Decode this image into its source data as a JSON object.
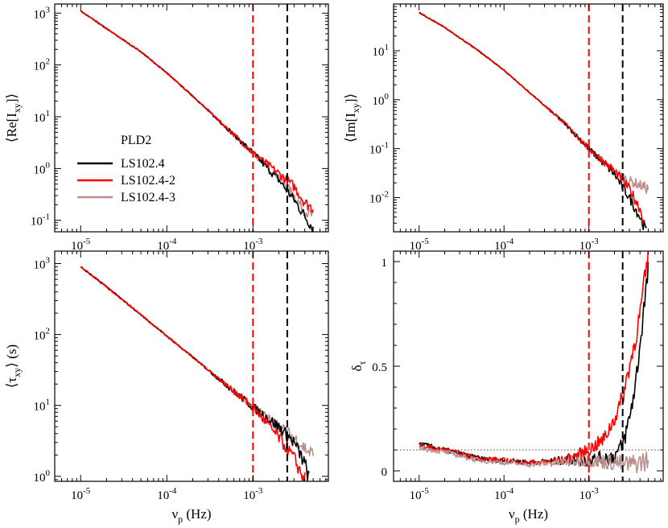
{
  "colors": {
    "LS102.4": "#000000",
    "LS102.4-2": "#ff0000",
    "LS102.4-3": "#bc8f8f",
    "refline_red": "#ff0000",
    "refline_black": "#000000"
  },
  "legend": {
    "title": "PLD2",
    "placement": "center-left of top-left panel",
    "entries": [
      "LS102.4",
      "LS102.4-2",
      "LS102.4-3"
    ]
  },
  "reference_lines": {
    "red_x": 0.001,
    "black_x": 0.0025,
    "dotted_y_delta": 0.1
  },
  "chart_data": [
    {
      "id": "re",
      "type": "line",
      "ylabel": "⟨Re[I_xy]⟩",
      "xlabel": "",
      "xscale": "log",
      "yscale": "log",
      "xlim": [
        5e-06,
        0.0075
      ],
      "ylim": [
        0.06,
        1500
      ],
      "xticks": [
        {
          "v": 1e-05,
          "mant": "10",
          "exp": "-5"
        },
        {
          "v": 0.0001,
          "mant": "10",
          "exp": "-4"
        },
        {
          "v": 0.001,
          "mant": "10",
          "exp": "-3"
        }
      ],
      "yticks": [
        {
          "v": 0.1,
          "mant": "10",
          "exp": "-1"
        },
        {
          "v": 1,
          "mant": "10",
          "exp": "0"
        },
        {
          "v": 10,
          "mant": "10",
          "exp": "1"
        },
        {
          "v": 100,
          "mant": "10",
          "exp": "2"
        },
        {
          "v": 1000,
          "mant": "10",
          "exp": "3"
        }
      ],
      "series": [
        {
          "name": "LS102.4",
          "points": [
            [
              1e-05,
              1100
            ],
            [
              2e-05,
              500
            ],
            [
              5e-05,
              180
            ],
            [
              0.0001,
              70
            ],
            [
              0.0002,
              25
            ],
            [
              0.0005,
              6
            ],
            [
              0.001,
              2
            ],
            [
              0.002,
              0.6
            ],
            [
              0.003,
              0.25
            ],
            [
              0.004,
              0.12
            ],
            [
              0.005,
              0.07
            ]
          ]
        },
        {
          "name": "LS102.4-2",
          "points": [
            [
              1e-05,
              1100
            ],
            [
              2e-05,
              500
            ],
            [
              5e-05,
              180
            ],
            [
              0.0001,
              70
            ],
            [
              0.0002,
              25
            ],
            [
              0.0005,
              6
            ],
            [
              0.001,
              2
            ],
            [
              0.002,
              0.8
            ],
            [
              0.003,
              0.45
            ],
            [
              0.004,
              0.22
            ],
            [
              0.005,
              0.17
            ]
          ]
        },
        {
          "name": "LS102.4-3",
          "points": [
            [
              1e-05,
              1100
            ],
            [
              2e-05,
              500
            ],
            [
              5e-05,
              180
            ],
            [
              0.0001,
              70
            ],
            [
              0.0002,
              25
            ],
            [
              0.0005,
              6
            ],
            [
              0.001,
              2
            ],
            [
              0.002,
              0.7
            ],
            [
              0.003,
              0.3
            ],
            [
              0.004,
              0.15
            ],
            [
              0.005,
              0.12
            ]
          ]
        }
      ]
    },
    {
      "id": "im",
      "type": "line",
      "ylabel": "⟨Im[I_xy]⟩",
      "xlabel": "",
      "xscale": "log",
      "yscale": "log",
      "xlim": [
        5e-06,
        0.0075
      ],
      "ylim": [
        0.002,
        90
      ],
      "xticks": [
        {
          "v": 1e-05,
          "mant": "10",
          "exp": "-5"
        },
        {
          "v": 0.0001,
          "mant": "10",
          "exp": "-4"
        },
        {
          "v": 0.001,
          "mant": "10",
          "exp": "-3"
        }
      ],
      "yticks": [
        {
          "v": 0.01,
          "mant": "10",
          "exp": "-2"
        },
        {
          "v": 0.1,
          "mant": "10",
          "exp": "-1"
        },
        {
          "v": 1,
          "mant": "10",
          "exp": "0"
        },
        {
          "v": 10,
          "mant": "10",
          "exp": "1"
        }
      ],
      "series": [
        {
          "name": "LS102.4",
          "points": [
            [
              1e-05,
              60
            ],
            [
              2e-05,
              30
            ],
            [
              5e-05,
              10
            ],
            [
              0.0001,
              4
            ],
            [
              0.0002,
              1.4
            ],
            [
              0.0005,
              0.35
            ],
            [
              0.001,
              0.1
            ],
            [
              0.002,
              0.03
            ],
            [
              0.003,
              0.01
            ],
            [
              0.004,
              0.004
            ],
            [
              0.0048,
              0.002
            ]
          ]
        },
        {
          "name": "LS102.4-2",
          "points": [
            [
              1e-05,
              60
            ],
            [
              2e-05,
              30
            ],
            [
              5e-05,
              10
            ],
            [
              0.0001,
              4
            ],
            [
              0.0002,
              1.4
            ],
            [
              0.0005,
              0.35
            ],
            [
              0.001,
              0.1
            ],
            [
              0.002,
              0.035
            ],
            [
              0.003,
              0.015
            ],
            [
              0.004,
              0.006
            ],
            [
              0.0045,
              0.003
            ]
          ]
        },
        {
          "name": "LS102.4-3",
          "points": [
            [
              1e-05,
              60
            ],
            [
              2e-05,
              30
            ],
            [
              5e-05,
              10
            ],
            [
              0.0001,
              4
            ],
            [
              0.0002,
              1.4
            ],
            [
              0.0005,
              0.35
            ],
            [
              0.001,
              0.1
            ],
            [
              0.002,
              0.035
            ],
            [
              0.003,
              0.022
            ],
            [
              0.004,
              0.018
            ],
            [
              0.005,
              0.015
            ]
          ]
        }
      ]
    },
    {
      "id": "tau",
      "type": "line",
      "ylabel": "⟨τ_xy⟩ (s)",
      "xlabel": "ν_p (Hz)",
      "xscale": "log",
      "yscale": "log",
      "xlim": [
        5e-06,
        0.0075
      ],
      "ylim": [
        0.85,
        1500
      ],
      "xticks": [
        {
          "v": 1e-05,
          "mant": "10",
          "exp": "-5"
        },
        {
          "v": 0.0001,
          "mant": "10",
          "exp": "-4"
        },
        {
          "v": 0.001,
          "mant": "10",
          "exp": "-3"
        }
      ],
      "yticks": [
        {
          "v": 1,
          "mant": "10",
          "exp": "0"
        },
        {
          "v": 10,
          "mant": "10",
          "exp": "1"
        },
        {
          "v": 100,
          "mant": "10",
          "exp": "2"
        },
        {
          "v": 1000,
          "mant": "10",
          "exp": "3"
        }
      ],
      "series": [
        {
          "name": "LS102.4",
          "points": [
            [
              1e-05,
              900
            ],
            [
              2e-05,
              470
            ],
            [
              5e-05,
              190
            ],
            [
              0.0001,
              95
            ],
            [
              0.0002,
              48
            ],
            [
              0.0005,
              19
            ],
            [
              0.001,
              9.5
            ],
            [
              0.002,
              5
            ],
            [
              0.003,
              3
            ],
            [
              0.004,
              1.5
            ],
            [
              0.0045,
              0.9
            ]
          ]
        },
        {
          "name": "LS102.4-2",
          "points": [
            [
              1e-05,
              900
            ],
            [
              2e-05,
              470
            ],
            [
              5e-05,
              190
            ],
            [
              0.0001,
              95
            ],
            [
              0.0002,
              48
            ],
            [
              0.0005,
              19
            ],
            [
              0.001,
              9.5
            ],
            [
              0.002,
              3.5
            ],
            [
              0.003,
              1.8
            ],
            [
              0.0035,
              1.2
            ],
            [
              0.004,
              0.9
            ]
          ]
        },
        {
          "name": "LS102.4-3",
          "points": [
            [
              1e-05,
              900
            ],
            [
              2e-05,
              470
            ],
            [
              5e-05,
              190
            ],
            [
              0.0001,
              95
            ],
            [
              0.0002,
              48
            ],
            [
              0.0005,
              19
            ],
            [
              0.001,
              9.5
            ],
            [
              0.002,
              5
            ],
            [
              0.003,
              3.5
            ],
            [
              0.004,
              2.5
            ],
            [
              0.005,
              2
            ]
          ]
        }
      ]
    },
    {
      "id": "delta",
      "type": "line",
      "ylabel": "δ_τ",
      "xlabel": "ν_p (Hz)",
      "xscale": "log",
      "yscale": "linear",
      "xlim": [
        5e-06,
        0.0075
      ],
      "ylim": [
        -0.05,
        1.05
      ],
      "xticks": [
        {
          "v": 1e-05,
          "mant": "10",
          "exp": "-5"
        },
        {
          "v": 0.0001,
          "mant": "10",
          "exp": "-4"
        },
        {
          "v": 0.001,
          "mant": "10",
          "exp": "-3"
        }
      ],
      "yticks": [
        {
          "v": 0,
          "label": "0"
        },
        {
          "v": 0.5,
          "label": "0.5"
        },
        {
          "v": 1,
          "label": "1"
        }
      ],
      "series": [
        {
          "name": "LS102.4",
          "points": [
            [
              1e-05,
              0.13
            ],
            [
              2e-05,
              0.1
            ],
            [
              5e-05,
              0.06
            ],
            [
              0.0001,
              0.05
            ],
            [
              0.0002,
              0.04
            ],
            [
              0.0005,
              0.05
            ],
            [
              0.001,
              0.05
            ],
            [
              0.002,
              0.07
            ],
            [
              0.0025,
              0.12
            ],
            [
              0.003,
              0.25
            ],
            [
              0.0035,
              0.4
            ],
            [
              0.004,
              0.6
            ],
            [
              0.0045,
              0.8
            ],
            [
              0.005,
              0.95
            ]
          ]
        },
        {
          "name": "LS102.4-2",
          "points": [
            [
              1e-05,
              0.12
            ],
            [
              2e-05,
              0.1
            ],
            [
              5e-05,
              0.06
            ],
            [
              0.0001,
              0.05
            ],
            [
              0.0002,
              0.04
            ],
            [
              0.0005,
              0.05
            ],
            [
              0.001,
              0.1
            ],
            [
              0.0015,
              0.15
            ],
            [
              0.002,
              0.25
            ],
            [
              0.0025,
              0.35
            ],
            [
              0.003,
              0.5
            ],
            [
              0.0035,
              0.62
            ],
            [
              0.004,
              0.75
            ],
            [
              0.0045,
              0.9
            ],
            [
              0.005,
              1.02
            ]
          ]
        },
        {
          "name": "LS102.4-3",
          "points": [
            [
              1e-05,
              0.11
            ],
            [
              2e-05,
              0.09
            ],
            [
              5e-05,
              0.05
            ],
            [
              0.0001,
              0.04
            ],
            [
              0.0002,
              0.03
            ],
            [
              0.0005,
              0.04
            ],
            [
              0.001,
              0.05
            ],
            [
              0.002,
              0.04
            ],
            [
              0.003,
              0.03
            ],
            [
              0.004,
              0.04
            ],
            [
              0.005,
              0.05
            ]
          ]
        }
      ]
    }
  ]
}
